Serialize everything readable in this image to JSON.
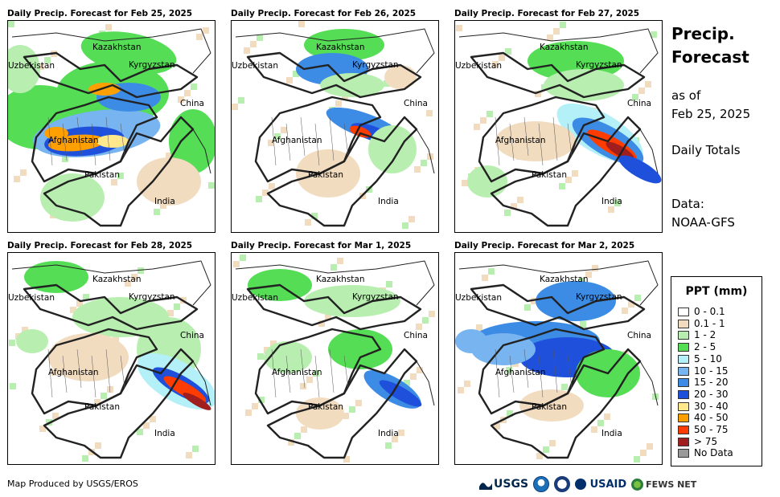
{
  "panels": [
    {
      "title": "Daily Precip. Forecast for Feb 25, 2025",
      "pattern": "feb25"
    },
    {
      "title": "Daily Precip. Forecast for Feb 26, 2025",
      "pattern": "feb26"
    },
    {
      "title": "Daily Precip. Forecast for Feb 27, 2025",
      "pattern": "feb27"
    },
    {
      "title": "Daily Precip. Forecast for Feb 28, 2025",
      "pattern": "feb28"
    },
    {
      "title": "Daily Precip. Forecast for Mar 1, 2025",
      "pattern": "mar1"
    },
    {
      "title": "Daily Precip. Forecast for Mar 2, 2025",
      "pattern": "mar2"
    }
  ],
  "map_labels": {
    "kazakhstan": "Kazakhstan",
    "uzbekistan": "Uzbekistan",
    "kyrgyzstan": "Kyrgyzstan",
    "china": "China",
    "afghanistan": "Afghanistan",
    "pakistan": "Pakistan",
    "india": "India"
  },
  "sidebar": {
    "title_line1": "Precip.",
    "title_line2": "Forecast",
    "asof_line1": "as of",
    "asof_line2": "Feb 25, 2025",
    "totals": "Daily Totals",
    "data_line1": "Data:",
    "data_line2": "NOAA-GFS"
  },
  "legend": {
    "title": "PPT (mm)",
    "items": [
      {
        "label": "0 - 0.1",
        "color": "#ffffff"
      },
      {
        "label": "0.1 - 1",
        "color": "#f2dcc0"
      },
      {
        "label": "1 - 2",
        "color": "#b8efb0"
      },
      {
        "label": "2 - 5",
        "color": "#55dd55"
      },
      {
        "label": "5 - 10",
        "color": "#b4f0f8"
      },
      {
        "label": "10 - 15",
        "color": "#78b4f0"
      },
      {
        "label": "15 - 20",
        "color": "#3c8ce6"
      },
      {
        "label": "20 - 30",
        "color": "#1e50dc"
      },
      {
        "label": "30 - 40",
        "color": "#ffe88c"
      },
      {
        "label": "40 - 50",
        "color": "#ffa000"
      },
      {
        "label": "50 - 75",
        "color": "#ff3c00"
      },
      {
        "label": "> 75",
        "color": "#a01e1e"
      },
      {
        "label": "No Data",
        "color": "#999999"
      }
    ]
  },
  "footer": {
    "credit": "Map Produced by USGS/EROS",
    "logo_usgs": "USGS",
    "logo_usaid": "USAID",
    "logo_fews": "FEWS NET"
  }
}
